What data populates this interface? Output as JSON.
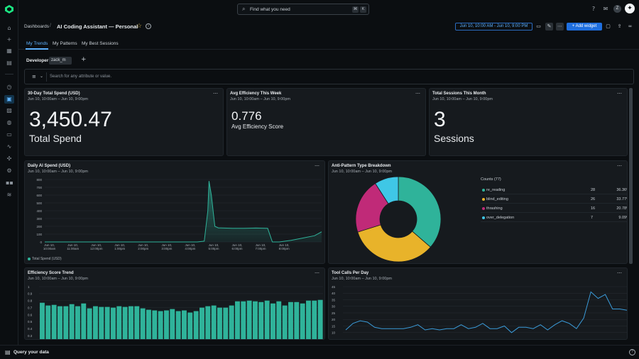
{
  "topbar": {
    "search_placeholder": "Find what you need",
    "kbd_cmd": "⌘",
    "kbd_k": "K",
    "avatar_initial": "Z"
  },
  "header": {
    "breadcrumb": "Dashboards",
    "title": "AI Coding Assistant — Personal",
    "time_range": "Jun 10, 10:00 AM - Jun 10, 9:00 PM",
    "add_widget_label": "+ Add widget"
  },
  "tabs": [
    {
      "label": "My Trends"
    },
    {
      "label": "My Patterns"
    },
    {
      "label": "My Best Sessions"
    }
  ],
  "variables": {
    "label": "Developer",
    "value": "zack_m"
  },
  "filter": {
    "placeholder": "Search for any attribute or value."
  },
  "widgets": {
    "total_spend": {
      "title": "30-Day Total Spend (USD)",
      "subtitle": "Jun 10, 10:00am – Jun 10, 9:00pm",
      "value": "3,450.47",
      "label": "Total Spend"
    },
    "efficiency": {
      "title": "Avg Efficiency This Week",
      "subtitle": "Jun 10, 10:00am – Jun 10, 9:00pm",
      "value": "0.776",
      "label": "Avg Efficiency Score"
    },
    "sessions": {
      "title": "Total Sessions This Month",
      "subtitle": "Jun 10, 10:00am – Jun 10, 9:00pm",
      "value": "3",
      "label": "Sessions"
    },
    "daily_spend": {
      "title": "Daily AI Spend (USD)",
      "subtitle": "Jun 10, 10:00am – Jun 10, 9:00pm",
      "legend": "Total Spend (USD)"
    },
    "antipattern": {
      "title": "Anti-Pattern Type Breakdown",
      "subtitle": "Jun 10, 10:00am – Jun 10, 9:00pm",
      "legend_title": "Counts (77)"
    },
    "efficiency_trend": {
      "title": "Efficiency Score Trend",
      "subtitle": "Jun 10, 10:00am – Jun 10, 9:00pm"
    },
    "tool_calls": {
      "title": "Tool Calls Per Day",
      "subtitle": "Jun 10, 10:00am – Jun 10, 9:00pm"
    }
  },
  "bottombar": {
    "label": "Query your data"
  },
  "colors": {
    "accent": "#1f6fe0",
    "teal": "#2fb39a",
    "yellow": "#e8b32a",
    "magenta": "#c02a78",
    "cyan": "#3fc7e6",
    "line_blue": "#3a9bd9"
  },
  "chart_data": [
    {
      "type": "area",
      "title": "Daily AI Spend (USD)",
      "ylim": [
        0,
        800
      ],
      "yticks": [
        "800",
        "700",
        "600",
        "500",
        "400",
        "300",
        "200",
        "100",
        "0"
      ],
      "x_labels": [
        [
          "Jun 10,",
          "10:00am"
        ],
        [
          "Jun 10,",
          "11:00am"
        ],
        [
          "Jun 10,",
          "12:00pm"
        ],
        [
          "Jun 10,",
          "1:00pm"
        ],
        [
          "Jun 10,",
          "2:00pm"
        ],
        [
          "Jun 10,",
          "3:00pm"
        ],
        [
          "Jun 10,",
          "4:00pm"
        ],
        [
          "Jun 10,",
          "5:00pm"
        ],
        [
          "Jun 10,",
          "6:00pm"
        ],
        [
          "Jun 10,",
          "7:00pm"
        ],
        [
          "Jun 10,",
          "8:00pm"
        ]
      ],
      "x": [
        0,
        0.5,
        1,
        1.5,
        2,
        2.5,
        3,
        3.5,
        4,
        4.5,
        5,
        5.5,
        6,
        6.5,
        6.8,
        6.95,
        7.0,
        7.1,
        7.25,
        7.4,
        7.5,
        8,
        8.5,
        9,
        9.5,
        9.7,
        10,
        10.5,
        11,
        11.5,
        11.8
      ],
      "series": [
        {
          "name": "Total Spend (USD)",
          "values": [
            0,
            0,
            0,
            0,
            0,
            0,
            0,
            0,
            0,
            0,
            0,
            0,
            0,
            0,
            10,
            400,
            780,
            600,
            200,
            180,
            180,
            175,
            175,
            178,
            175,
            0,
            0,
            20,
            50,
            80,
            130
          ]
        }
      ]
    },
    {
      "type": "pie",
      "title": "Anti-Pattern Type Breakdown",
      "slices": [
        {
          "label": "re_reading",
          "value": 28,
          "percent": "36.36%",
          "color": "#2fb39a"
        },
        {
          "label": "blind_editing",
          "value": 26,
          "percent": "33.77%",
          "color": "#e8b32a"
        },
        {
          "label": "thrashing",
          "value": 16,
          "percent": "20.78%",
          "color": "#c02a78"
        },
        {
          "label": "over_delegation",
          "value": 7,
          "percent": "9.09%",
          "color": "#3fc7e6"
        }
      ]
    },
    {
      "type": "bar",
      "title": "Efficiency Score Trend",
      "ylim": [
        0,
        1
      ],
      "yticks": [
        "1",
        "0.9",
        "0.8",
        "0.7",
        "0.6",
        "0.5",
        "0.4",
        "0.3"
      ],
      "values": [
        0.77,
        0.73,
        0.74,
        0.72,
        0.72,
        0.75,
        0.72,
        0.76,
        0.69,
        0.72,
        0.71,
        0.71,
        0.7,
        0.72,
        0.71,
        0.72,
        0.72,
        0.69,
        0.67,
        0.66,
        0.65,
        0.66,
        0.68,
        0.65,
        0.66,
        0.63,
        0.65,
        0.7,
        0.72,
        0.73,
        0.7,
        0.7,
        0.73,
        0.79,
        0.79,
        0.8,
        0.79,
        0.78,
        0.8,
        0.76,
        0.79,
        0.73,
        0.78,
        0.78,
        0.76,
        0.8,
        0.8,
        0.81
      ]
    },
    {
      "type": "line",
      "title": "Tool Calls Per Day",
      "ylim": [
        0,
        45
      ],
      "yticks": [
        "45",
        "40",
        "35",
        "30",
        "25",
        "20",
        "15",
        "10"
      ],
      "values": [
        12,
        17,
        19,
        18,
        14,
        13,
        13,
        13,
        13,
        14,
        16,
        12,
        13,
        12,
        13,
        13,
        16,
        13,
        14,
        17,
        13,
        13,
        15,
        10,
        14,
        14,
        13,
        16,
        12,
        16,
        19,
        17,
        13,
        21,
        41,
        36,
        39,
        28,
        28,
        27
      ]
    }
  ]
}
